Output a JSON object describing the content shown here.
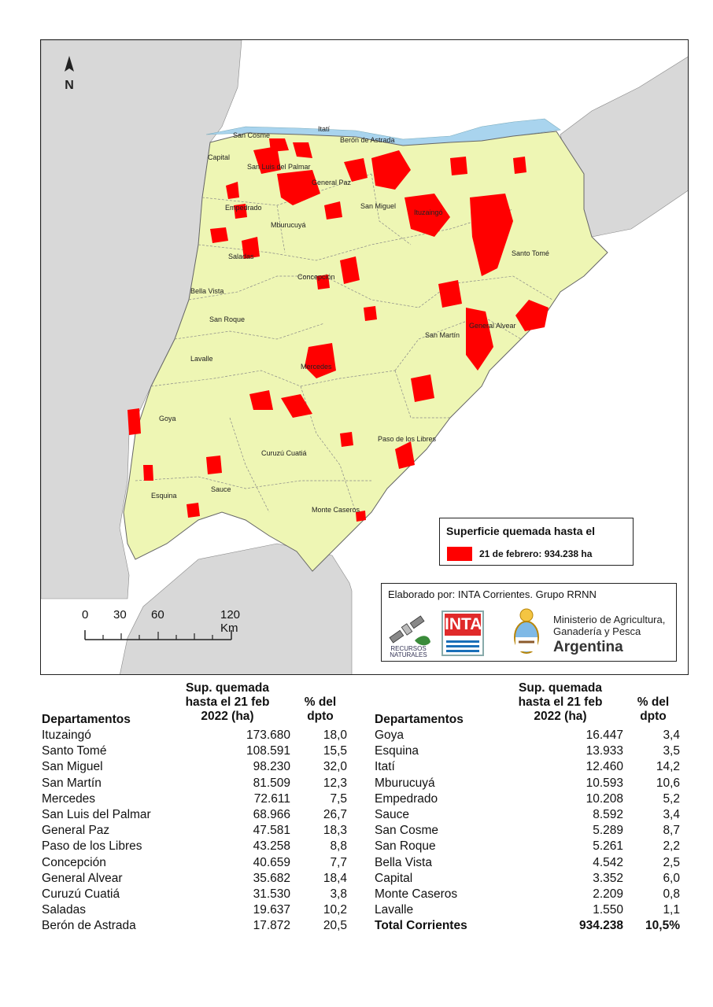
{
  "map": {
    "north_label": "N",
    "colors": {
      "province": "#eef6b4",
      "neighbor": "#d8d8d8",
      "water": "#a9d4ee",
      "burned": "#ff0000",
      "boundary": "#666666"
    },
    "departments": [
      {
        "name": "San Cosme"
      },
      {
        "name": "Itatí"
      },
      {
        "name": "Berón de Astrada"
      },
      {
        "name": "Capital"
      },
      {
        "name": "San Luis del Palmar"
      },
      {
        "name": "General Paz"
      },
      {
        "name": "Empedrado"
      },
      {
        "name": "San Miguel"
      },
      {
        "name": "Ituzaingó"
      },
      {
        "name": "Mburucuyá"
      },
      {
        "name": "Santo Tomé"
      },
      {
        "name": "Saladas"
      },
      {
        "name": "Concepción"
      },
      {
        "name": "Bella Vista"
      },
      {
        "name": "San Roque"
      },
      {
        "name": "General Alvear"
      },
      {
        "name": "San Martín"
      },
      {
        "name": "Lavalle"
      },
      {
        "name": "Mercedes"
      },
      {
        "name": "Goya"
      },
      {
        "name": "Paso de los Libres"
      },
      {
        "name": "Curuzú Cuatiá"
      },
      {
        "name": "Esquina"
      },
      {
        "name": "Sauce"
      },
      {
        "name": "Monte Caseros"
      }
    ],
    "legend": {
      "title": "Superficie quemada hasta el",
      "label": "21 de febrero: 934.238 ha"
    },
    "credit": {
      "text": "Elaborado por: INTA Corrientes. Grupo RRNN",
      "recursos": "RECURSOS NATURALES",
      "inta": "INTA",
      "ministry": "Ministerio de Agricultura, Ganadería y Pesca",
      "country": "Argentina"
    },
    "scale": {
      "labels": [
        "0",
        "30",
        "60",
        "120 Km"
      ]
    }
  },
  "table": {
    "headers": {
      "dept": "Departamentos",
      "area": "Sup. quemada hasta el 21 feb 2022 (ha)",
      "pct": "% del dpto"
    },
    "left": [
      {
        "name": "Ituzaingó",
        "area": "173.680",
        "pct": "18,0"
      },
      {
        "name": "Santo Tomé",
        "area": "108.591",
        "pct": "15,5"
      },
      {
        "name": "San Miguel",
        "area": "98.230",
        "pct": "32,0"
      },
      {
        "name": "San Martín",
        "area": "81.509",
        "pct": "12,3"
      },
      {
        "name": "Mercedes",
        "area": "72.611",
        "pct": "7,5"
      },
      {
        "name": "San Luis del Palmar",
        "area": "68.966",
        "pct": "26,7"
      },
      {
        "name": "General Paz",
        "area": "47.581",
        "pct": "18,3"
      },
      {
        "name": "Paso de los Libres",
        "area": "43.258",
        "pct": "8,8"
      },
      {
        "name": "Concepción",
        "area": "40.659",
        "pct": "7,7"
      },
      {
        "name": "General Alvear",
        "area": "35.682",
        "pct": "18,4"
      },
      {
        "name": "Curuzú Cuatiá",
        "area": "31.530",
        "pct": "3,8"
      },
      {
        "name": "Saladas",
        "area": "19.637",
        "pct": "10,2"
      },
      {
        "name": "Berón de Astrada",
        "area": "17.872",
        "pct": "20,5"
      }
    ],
    "right": [
      {
        "name": "Goya",
        "area": "16.447",
        "pct": "3,4"
      },
      {
        "name": "Esquina",
        "area": "13.933",
        "pct": "3,5"
      },
      {
        "name": "Itatí",
        "area": "12.460",
        "pct": "14,2"
      },
      {
        "name": "Mburucuyá",
        "area": "10.593",
        "pct": "10,6"
      },
      {
        "name": "Empedrado",
        "area": "10.208",
        "pct": "5,2"
      },
      {
        "name": "Sauce",
        "area": "8.592",
        "pct": "3,4"
      },
      {
        "name": "San Cosme",
        "area": "5.289",
        "pct": "8,7"
      },
      {
        "name": "San Roque",
        "area": "5.261",
        "pct": "2,2"
      },
      {
        "name": "Bella Vista",
        "area": "4.542",
        "pct": "2,5"
      },
      {
        "name": "Capital",
        "area": "3.352",
        "pct": "6,0"
      },
      {
        "name": "Monte Caseros",
        "area": "2.209",
        "pct": "0,8"
      },
      {
        "name": "Lavalle",
        "area": "1.550",
        "pct": "1,1"
      }
    ],
    "total": {
      "name": "Total Corrientes",
      "area": "934.238",
      "pct": "10,5%"
    }
  }
}
